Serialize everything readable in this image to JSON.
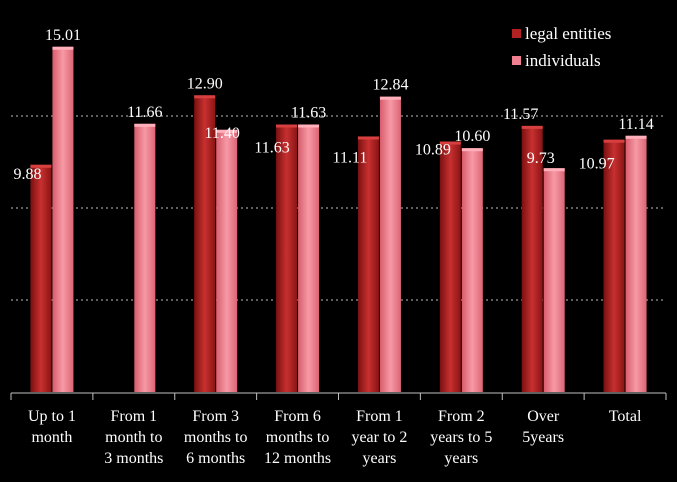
{
  "chart_data": {
    "type": "bar",
    "title": "",
    "xlabel": "",
    "ylabel": "",
    "ylim": [
      0,
      16
    ],
    "grid": "horizontal dotted",
    "legend_position": "top-right",
    "categories": [
      [
        "Up to 1",
        "month"
      ],
      [
        "From 1",
        "month to",
        "3 months"
      ],
      [
        "From 3",
        "months to",
        "6 months"
      ],
      [
        "From 6",
        "months to",
        "12 months"
      ],
      [
        "From 1",
        "year to 2",
        "years"
      ],
      [
        "From 2",
        "years to 5",
        "years"
      ],
      [
        "Over",
        "5years"
      ],
      [
        "Total"
      ]
    ],
    "series": [
      {
        "name": "legal entities",
        "color": "#b22222",
        "values": [
          9.88,
          null,
          12.9,
          11.63,
          11.11,
          10.89,
          11.57,
          10.97
        ],
        "labels": [
          "9.88",
          "",
          "12.90",
          "11.63",
          "11.11",
          "10.89",
          "11.57",
          "10.97"
        ]
      },
      {
        "name": "individuals",
        "color": "#f08090",
        "values": [
          15.01,
          11.66,
          11.4,
          11.63,
          12.84,
          10.6,
          9.73,
          11.14
        ],
        "labels": [
          "15.01",
          "11.66",
          "11.40",
          "11.63",
          "12.84",
          "10.60",
          "9.73",
          "11.14"
        ]
      }
    ]
  }
}
